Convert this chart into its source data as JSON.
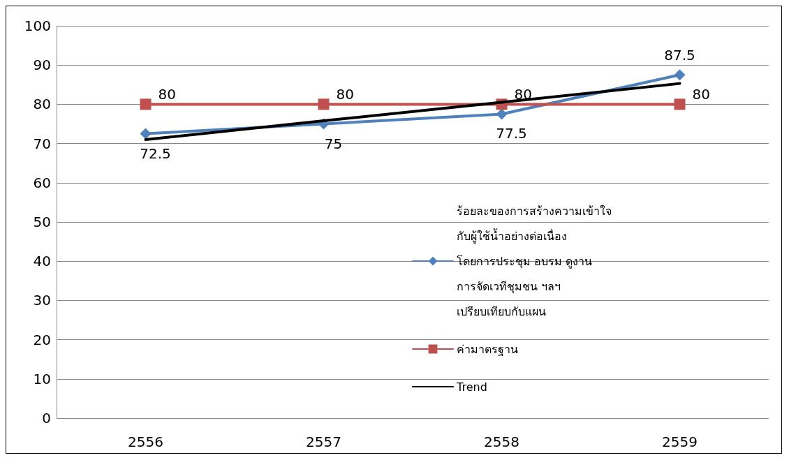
{
  "chart_data": {
    "type": "line",
    "categories": [
      "2556",
      "2557",
      "2558",
      "2559"
    ],
    "series": [
      {
        "name": "ร้อยละของการสร้างความเข้าใจกับผู้ใช้น้ำอย่างต่อเนื่อง โดยการประชุม อบรม ดูงาน การจัดเวทีชุมชน ฯลฯ เปรียบเทียบกับแผน",
        "color": "#4f81bd",
        "values": [
          72.5,
          75,
          77.5,
          87.5
        ],
        "value_labels": [
          "72.5",
          "75",
          "77.5",
          "87.5"
        ],
        "marker": "diamond"
      },
      {
        "name": "ค่ามาตรฐาน",
        "color": "#c0504d",
        "values": [
          80,
          80,
          80,
          80
        ],
        "value_labels": [
          "80",
          "80",
          "80",
          "80"
        ],
        "marker": "square"
      },
      {
        "name": "Trend",
        "color": "#000000",
        "values": [
          71,
          75.8,
          80.5,
          85.3
        ],
        "marker": "none"
      }
    ],
    "ylim": [
      0,
      100
    ],
    "yticks": [
      0,
      10,
      20,
      30,
      40,
      50,
      60,
      70,
      80,
      90,
      100
    ],
    "grid": "y",
    "legend": "right",
    "line_style": "solid"
  }
}
